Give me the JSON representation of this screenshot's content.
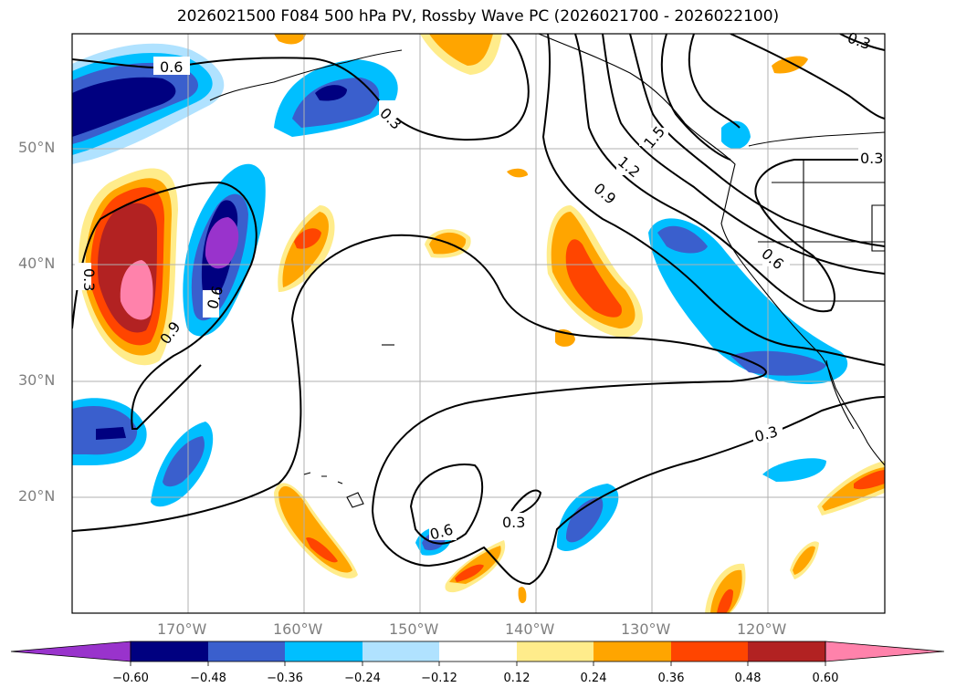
{
  "title": "2026021500 F084 500 hPa PV, Rossby Wave PC (2026021700 - 2026022100)",
  "map": {
    "lon_labels": [
      "170°W",
      "160°W",
      "150°W",
      "140°W",
      "130°W",
      "120°W"
    ],
    "lat_labels": [
      "50°N",
      "40°N",
      "30°N",
      "20°N"
    ],
    "contour_labels": [
      "0.6",
      "0.3",
      "1.5",
      "1.2",
      "0.9",
      "0.3",
      "0.3",
      "0.6",
      "0.3",
      "0.9",
      "0.6",
      "0.3",
      "0.6",
      "0.3"
    ],
    "colors": {
      "n060": "#9933cc",
      "n048": "#000080",
      "n036": "#3a5fcd",
      "n024": "#00bfff",
      "n012": "#b0e2ff",
      "zero": "#ffffff",
      "p012": "#ffec8b",
      "p024": "#ffa500",
      "p036": "#ff4500",
      "p048": "#b22222",
      "p060": "#ff82ab"
    }
  },
  "colorbar": {
    "labels": [
      "−0.60",
      "−0.48",
      "−0.36",
      "−0.24",
      "−0.12",
      "0.12",
      "0.24",
      "0.36",
      "0.48",
      "0.60"
    ]
  }
}
